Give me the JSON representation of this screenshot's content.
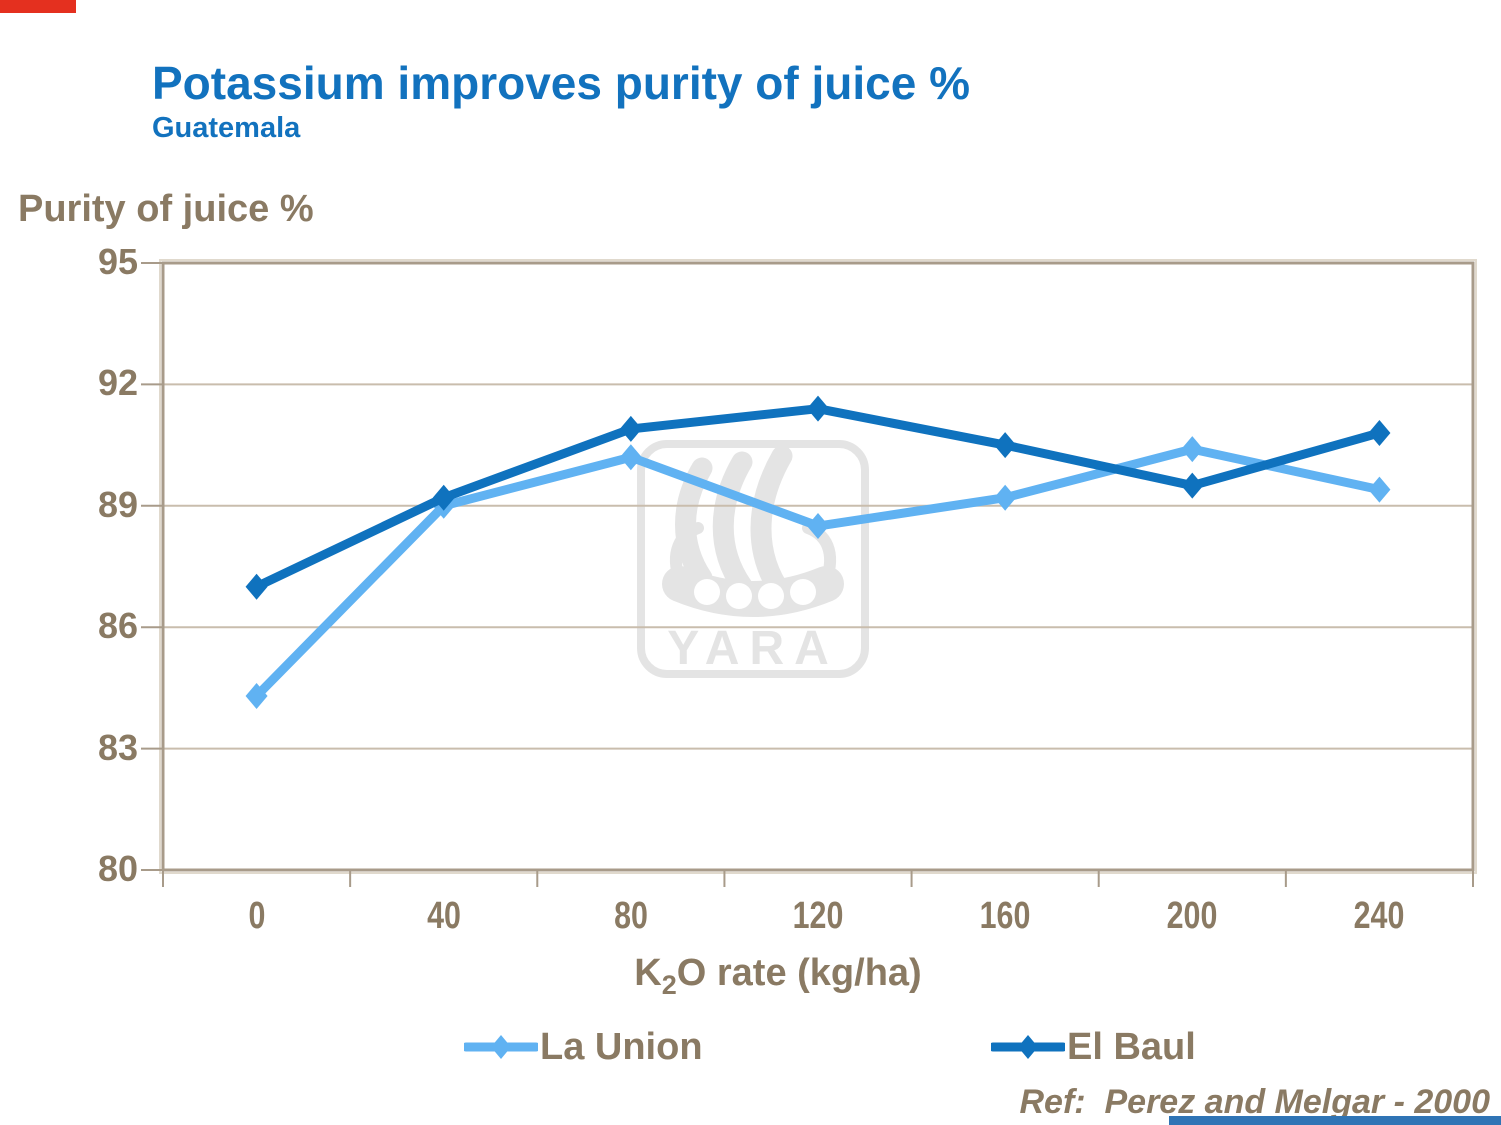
{
  "slide": {
    "title": "Potassium improves purity of juice %",
    "subtitle": "Guatemala",
    "reference": "Ref:  Perez and Melgar - 2000",
    "accent_colors": {
      "top_left_bar": "#E4301F",
      "bottom_right_bar": "#2F74B5"
    }
  },
  "watermark": {
    "text": "YARA",
    "color": "#E4E4E4"
  },
  "chart_data": {
    "type": "line",
    "title": "Potassium improves purity of juice %",
    "subtitle": "Guatemala",
    "ylabel": "Purity of juice %",
    "xlabel": "K2O rate (kg/ha)",
    "xlabel_parts": {
      "main": "K",
      "sub": "2",
      "rest": "O rate (kg/ha)"
    },
    "categories": [
      0,
      40,
      80,
      120,
      160,
      200,
      240
    ],
    "ylim": [
      80,
      95
    ],
    "yticks": [
      80,
      83,
      86,
      89,
      92,
      95
    ],
    "grid": true,
    "legend_position": "bottom",
    "series": [
      {
        "name": "La Union",
        "color": "#60B2F2",
        "marker": "diamond",
        "values": [
          84.3,
          89.0,
          90.2,
          88.5,
          89.2,
          90.4,
          89.4
        ]
      },
      {
        "name": "El Baul",
        "color": "#0F72BE",
        "marker": "diamond",
        "values": [
          87.0,
          89.2,
          90.9,
          91.4,
          90.5,
          89.5,
          90.8
        ]
      }
    ],
    "axis_color": "#A89B8A",
    "grid_color": "#C9BDAD",
    "label_color": "#8A7A63",
    "title_color": "#1272BE"
  }
}
